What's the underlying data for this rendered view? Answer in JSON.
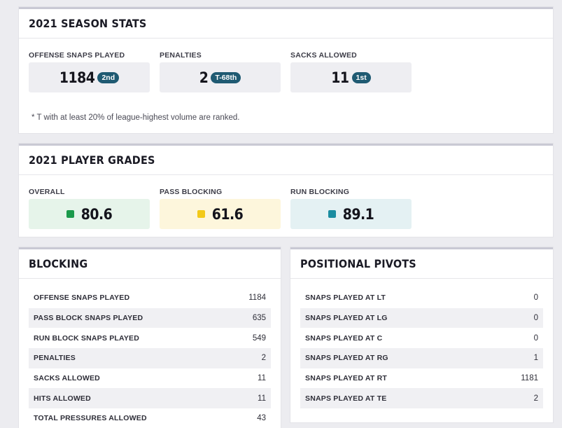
{
  "season_stats": {
    "title": "2021 SEASON STATS",
    "stats": [
      {
        "label": "OFFENSE SNAPS PLAYED",
        "value": "1184",
        "rank": "2nd"
      },
      {
        "label": "PENALTIES",
        "value": "2",
        "rank": "T-68th"
      },
      {
        "label": "SACKS ALLOWED",
        "value": "11",
        "rank": "1st"
      }
    ],
    "note": "* T with at least 20% of league-highest volume are ranked."
  },
  "player_grades": {
    "title": "2021 PLAYER GRADES",
    "grades": [
      {
        "label": "OVERALL",
        "value": "80.6",
        "bg": "#e6f4ea",
        "color": "#1b9a4b"
      },
      {
        "label": "PASS BLOCKING",
        "value": "61.6",
        "bg": "#fdf6dc",
        "color": "#f2c919"
      },
      {
        "label": "RUN BLOCKING",
        "value": "89.1",
        "bg": "#e4f1f3",
        "color": "#1a8ca0"
      }
    ]
  },
  "blocking": {
    "title": "BLOCKING",
    "rows": [
      {
        "label": "OFFENSE SNAPS PLAYED",
        "value": "1184"
      },
      {
        "label": "PASS BLOCK SNAPS PLAYED",
        "value": "635"
      },
      {
        "label": "RUN BLOCK SNAPS PLAYED",
        "value": "549"
      },
      {
        "label": "PENALTIES",
        "value": "2"
      },
      {
        "label": "SACKS ALLOWED",
        "value": "11"
      },
      {
        "label": "HITS ALLOWED",
        "value": "11"
      },
      {
        "label": "TOTAL PRESSURES ALLOWED",
        "value": "43"
      }
    ]
  },
  "positional_pivots": {
    "title": "POSITIONAL PIVOTS",
    "rows": [
      {
        "label": "SNAPS PLAYED AT LT",
        "value": "0"
      },
      {
        "label": "SNAPS PLAYED AT LG",
        "value": "0"
      },
      {
        "label": "SNAPS PLAYED AT C",
        "value": "0"
      },
      {
        "label": "SNAPS PLAYED AT RG",
        "value": "1"
      },
      {
        "label": "SNAPS PLAYED AT RT",
        "value": "1181"
      },
      {
        "label": "SNAPS PLAYED AT TE",
        "value": "2"
      }
    ]
  },
  "colors": {
    "rank_badge": "#1f5a72",
    "card_border": "#c9c9d4"
  }
}
